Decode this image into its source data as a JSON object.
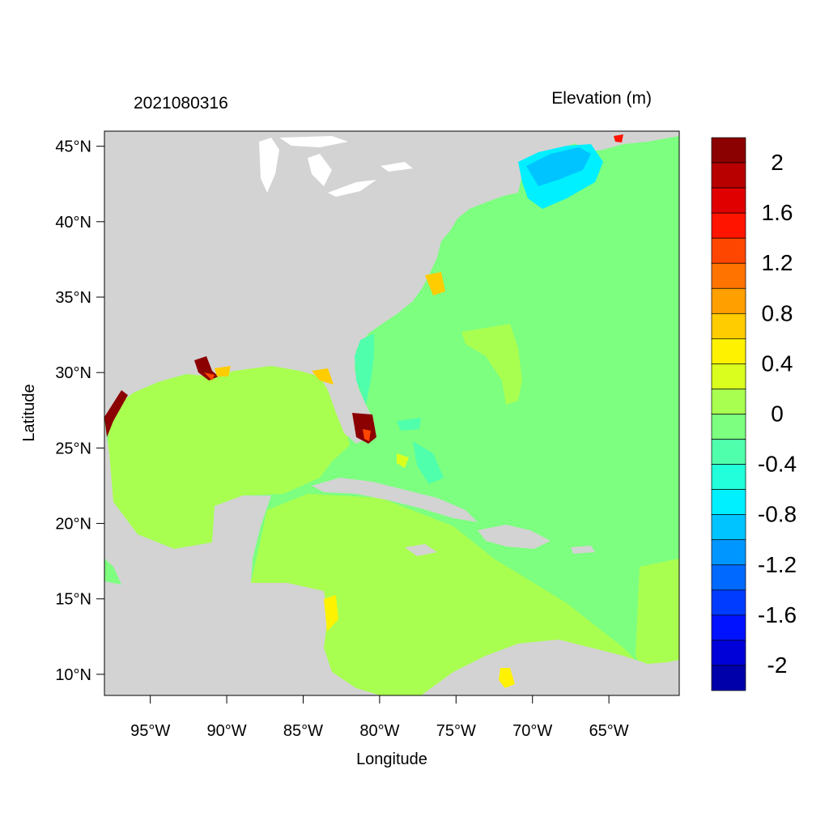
{
  "left_title": "2021080316",
  "right_title": "Elevation (m)",
  "x_axis": {
    "label": "Longitude",
    "range": [
      -98,
      -60.4
    ],
    "ticks": [
      {
        "value": -95,
        "label": "95°W"
      },
      {
        "value": -90,
        "label": "90°W"
      },
      {
        "value": -85,
        "label": "85°W"
      },
      {
        "value": -80,
        "label": "80°W"
      },
      {
        "value": -75,
        "label": "75°W"
      },
      {
        "value": -70,
        "label": "70°W"
      },
      {
        "value": -65,
        "label": "65°W"
      }
    ]
  },
  "y_axis": {
    "label": "Latitude",
    "range": [
      8.6,
      46
    ],
    "ticks": [
      {
        "value": 45,
        "label": "45°N"
      },
      {
        "value": 40,
        "label": "40°N"
      },
      {
        "value": 35,
        "label": "35°N"
      },
      {
        "value": 30,
        "label": "30°N"
      },
      {
        "value": 25,
        "label": "25°N"
      },
      {
        "value": 20,
        "label": "20°N"
      },
      {
        "value": 15,
        "label": "15°N"
      },
      {
        "value": 10,
        "label": "10°N"
      }
    ]
  },
  "colorbar": {
    "colors_top_to_bottom": [
      "#8b0000",
      "#b80000",
      "#e00000",
      "#ff1400",
      "#ff4600",
      "#ff7300",
      "#ff9f00",
      "#ffcc00",
      "#fff200",
      "#daff1f",
      "#a9ff50",
      "#7dff80",
      "#50ffac",
      "#22ffdb",
      "#00f0ff",
      "#00c4ff",
      "#0096ff",
      "#0069ff",
      "#003cff",
      "#0012ff",
      "#0000d8",
      "#0000aa"
    ],
    "labels_top_to_bottom": [
      "2",
      "1.6",
      "1.2",
      "0.8",
      "0.4",
      "0",
      "-0.4",
      "-0.8",
      "-1.2",
      "-1.6",
      "-2"
    ]
  },
  "colors": {
    "land": "#d3d3d3",
    "ocean_default": "#7dff80",
    "gulf_caribbean": "#a9ff50",
    "near_zero_neg": "#50ffac",
    "negative_mid": "#22ffdb",
    "negative_strong": "#00c4ff",
    "surge_high": "#8b0000",
    "surge_mid": "#ff4600",
    "surge_low": "#ffcc00"
  }
}
